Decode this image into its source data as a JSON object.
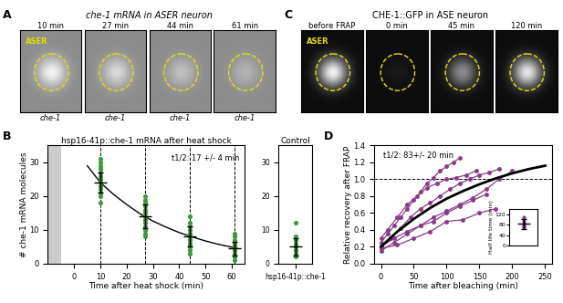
{
  "panel_labels": [
    "A",
    "B",
    "C",
    "D"
  ],
  "image_panels": [
    {
      "title": "che-1 mRNA in ASER neuron",
      "cell_label": "ASER",
      "times": [
        "10 min",
        "27 min",
        "44 min",
        "61 min"
      ],
      "captions": [
        "che-1",
        "che-1",
        "che-1",
        "che-1"
      ]
    },
    {
      "title": "CHE-1::GFP in ASE neuron",
      "cell_label": "ASER",
      "times": [
        "before FRAP",
        "0 min",
        "45 min",
        "120 min"
      ]
    }
  ],
  "chart_data": [
    {
      "type": "scatter",
      "title": "hsp16-41p::che-1 mRNA after heat shock",
      "xlabel": "Time after heat shock (min)",
      "ylabel": "# che-1 mRNA molecules",
      "annotations": [
        "t1/2: 17 +/- 4 min"
      ],
      "color": "#3a9a3a",
      "x": [
        10,
        27,
        44,
        61
      ],
      "points": [
        [
          18,
          20,
          21,
          22,
          23,
          23,
          24,
          25,
          25,
          26,
          27,
          28,
          29,
          30,
          31
        ],
        [
          8,
          9,
          10,
          11,
          12,
          13,
          14,
          14,
          15,
          16,
          17,
          18,
          19,
          20
        ],
        [
          3,
          4,
          5,
          6,
          7,
          7,
          8,
          8,
          9,
          10,
          11,
          12,
          14
        ],
        [
          1,
          2,
          2,
          3,
          3,
          4,
          4,
          5,
          5,
          6,
          7,
          8,
          9
        ]
      ],
      "means": [
        24,
        14,
        8,
        4.5
      ],
      "errors": [
        3,
        3.5,
        3,
        2
      ],
      "fit": {
        "x": [
          5,
          10,
          15,
          20,
          25,
          30,
          35,
          40,
          45,
          50,
          55,
          60,
          62
        ],
        "values": [
          29,
          24,
          20.5,
          17.5,
          14.8,
          12.6,
          10.8,
          9.2,
          7.9,
          6.7,
          5.7,
          4.9,
          4.6
        ]
      },
      "shaded_span": [
        -10,
        -5
      ],
      "xlim": [
        -10,
        65
      ],
      "xticks": [
        0,
        10,
        20,
        30,
        40,
        50,
        60
      ],
      "ylim": [
        0,
        35
      ],
      "yticks": [
        0,
        10,
        20,
        30
      ]
    },
    {
      "type": "scatter",
      "title": "Control",
      "color": "#3a9a3a",
      "categories": [
        "hsp16-41p::che-1"
      ],
      "points": [
        [
          2,
          3,
          3,
          4,
          4,
          5,
          5,
          6,
          7,
          8,
          12
        ]
      ],
      "means": [
        5
      ],
      "errors": [
        2.5
      ],
      "ylim": [
        0,
        35
      ],
      "yticks": [
        0,
        10,
        20,
        30
      ]
    },
    {
      "type": "line",
      "xlabel": "Time after bleaching (min)",
      "ylabel": "Relative recovery after FRAP",
      "annotations": [
        "t1/2: 83+/- 20 min"
      ],
      "reference_line": 1.0,
      "series": [
        {
          "color": "#8b3a8b",
          "marker": "o",
          "x": [
            0,
            10,
            20,
            30,
            40,
            50,
            60,
            70,
            80,
            90,
            100,
            110,
            120
          ],
          "values": [
            0.25,
            0.35,
            0.45,
            0.55,
            0.65,
            0.75,
            0.85,
            0.95,
            1.02,
            1.1,
            1.15,
            1.2,
            1.25
          ]
        },
        {
          "color": "#8b3a8b",
          "marker": "o",
          "x": [
            0,
            15,
            30,
            45,
            60,
            75,
            90,
            105,
            120,
            135,
            150,
            165,
            180
          ],
          "values": [
            0.2,
            0.3,
            0.42,
            0.55,
            0.65,
            0.72,
            0.8,
            0.88,
            0.95,
            1.0,
            1.05,
            1.08,
            1.12
          ]
        },
        {
          "color": "#8b3a8b",
          "marker": "o",
          "x": [
            0,
            20,
            40,
            60,
            80,
            100,
            120,
            140,
            160,
            180,
            200
          ],
          "values": [
            0.15,
            0.25,
            0.35,
            0.45,
            0.55,
            0.62,
            0.7,
            0.78,
            0.88,
            1.0,
            1.1
          ]
        },
        {
          "color": "#8b3a8b",
          "marker": "o",
          "x": [
            0,
            20,
            40,
            60,
            80,
            100,
            120,
            140,
            160
          ],
          "values": [
            0.2,
            0.3,
            0.38,
            0.45,
            0.5,
            0.6,
            0.68,
            0.75,
            0.82
          ]
        },
        {
          "color": "#8b3a8b",
          "marker": "o",
          "x": [
            0,
            10,
            25,
            40,
            55,
            70,
            85,
            100,
            115,
            130,
            145
          ],
          "values": [
            0.3,
            0.4,
            0.55,
            0.7,
            0.8,
            0.9,
            0.95,
            1.0,
            1.02,
            1.05,
            1.1
          ]
        },
        {
          "color": "#8b3a8b",
          "marker": "o",
          "x": [
            0,
            25,
            50,
            75,
            100,
            125,
            150,
            175
          ],
          "values": [
            0.18,
            0.22,
            0.3,
            0.38,
            0.5,
            0.52,
            0.6,
            0.65
          ]
        },
        {
          "color": "#000000",
          "marker": "none",
          "x": [
            0,
            25,
            50,
            75,
            100,
            125,
            150,
            175,
            200,
            225,
            250
          ],
          "values": [
            0.2,
            0.38,
            0.53,
            0.66,
            0.77,
            0.86,
            0.94,
            1.01,
            1.07,
            1.12,
            1.16
          ]
        }
      ],
      "xlim": [
        -10,
        260
      ],
      "xticks": [
        0,
        50,
        100,
        150,
        200,
        250
      ],
      "ylim": [
        0,
        1.4
      ],
      "yticks": [
        {
          "value": 0,
          "label": "0.0"
        },
        {
          "value": 0.2,
          "label": "0.2"
        },
        {
          "value": 0.4,
          "label": "0.4"
        },
        {
          "value": 0.6,
          "label": "0.6"
        },
        {
          "value": 0.8,
          "label": "0.8"
        },
        {
          "value": 1.0,
          "label": "1.0"
        },
        {
          "value": 1.2,
          "label": "1.2"
        },
        {
          "value": 1.4,
          "label": "1.4"
        }
      ]
    },
    {
      "type": "scatter",
      "ylabel": "Half life time (min)",
      "color": "#8b3a8b",
      "points": [
        [
          70,
          75,
          80,
          85,
          90,
          100,
          110
        ]
      ],
      "means": [
        83
      ],
      "errors": [
        20
      ],
      "ylim": [
        0,
        140
      ],
      "yticks": [
        0,
        40,
        80,
        120
      ]
    }
  ]
}
